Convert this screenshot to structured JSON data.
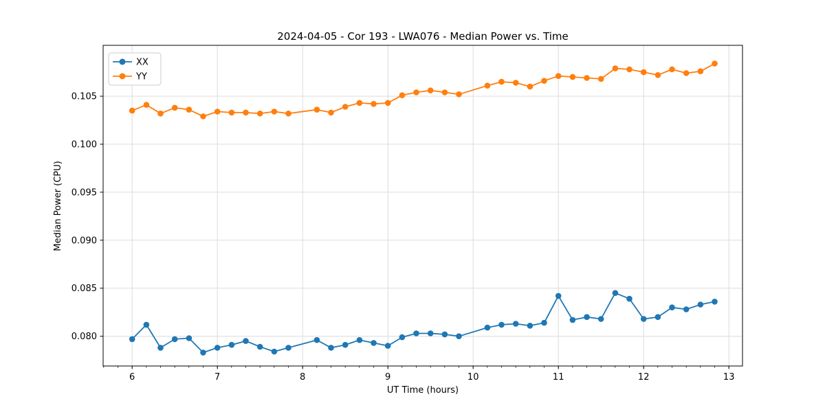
{
  "title": "2024-04-05 - Cor 193 - LWA076 - Median Power vs. Time",
  "chart_data": {
    "type": "line",
    "title": "2024-04-05 - Cor 193 - LWA076 - Median Power vs. Time",
    "xlabel": "UT Time (hours)",
    "ylabel": "Median Power (CPU)",
    "xlim": [
      5.66,
      13.16
    ],
    "ylim": [
      0.0769,
      0.1103
    ],
    "x_major_ticks": [
      6,
      7,
      8,
      9,
      10,
      11,
      12,
      13
    ],
    "x_minor_step": 0.1666667,
    "y_major_ticks": [
      0.08,
      0.085,
      0.09,
      0.095,
      0.1,
      0.105
    ],
    "y_tick_decimals": 3,
    "grid": true,
    "legend_position": "upper-left",
    "marker": "circle",
    "x": [
      6.0,
      6.167,
      6.333,
      6.5,
      6.667,
      6.833,
      7.0,
      7.167,
      7.333,
      7.5,
      7.667,
      7.833,
      8.167,
      8.333,
      8.5,
      8.667,
      8.833,
      9.0,
      9.167,
      9.333,
      9.5,
      9.667,
      9.833,
      10.167,
      10.333,
      10.5,
      10.667,
      10.833,
      11.0,
      11.167,
      11.333,
      11.5,
      11.667,
      11.833,
      12.0,
      12.167,
      12.333,
      12.5,
      12.667,
      12.833
    ],
    "series": [
      {
        "name": "XX",
        "color": "#1f77b4",
        "values": [
          0.0797,
          0.0812,
          0.0788,
          0.0797,
          0.0798,
          0.0783,
          0.0788,
          0.0791,
          0.0795,
          0.0789,
          0.0784,
          0.0788,
          0.0796,
          0.0788,
          0.0791,
          0.0796,
          0.0793,
          0.079,
          0.0799,
          0.0803,
          0.0803,
          0.0802,
          0.08,
          0.0809,
          0.0812,
          0.0813,
          0.0811,
          0.0814,
          0.0842,
          0.0817,
          0.082,
          0.0818,
          0.0845,
          0.0839,
          0.0818,
          0.082,
          0.083,
          0.0828,
          0.0833,
          0.0836
        ]
      },
      {
        "name": "YY",
        "color": "#ff7f0e",
        "values": [
          0.1035,
          0.1041,
          0.1032,
          0.1038,
          0.1036,
          0.1029,
          0.1034,
          0.1033,
          0.1033,
          0.1032,
          0.1034,
          0.1032,
          0.1036,
          0.1033,
          0.1039,
          0.1043,
          0.1042,
          0.1043,
          0.1051,
          0.1054,
          0.1056,
          0.1054,
          0.1052,
          0.1061,
          0.1065,
          0.1064,
          0.106,
          0.1066,
          0.1071,
          0.107,
          0.1069,
          0.1068,
          0.1079,
          0.1078,
          0.1075,
          0.1072,
          0.1078,
          0.1074,
          0.1076,
          0.1084
        ]
      }
    ]
  },
  "colors": {
    "grid": "#dcdcdc",
    "spine": "#000000",
    "legend_border": "#cccccc",
    "background": "#ffffff"
  }
}
